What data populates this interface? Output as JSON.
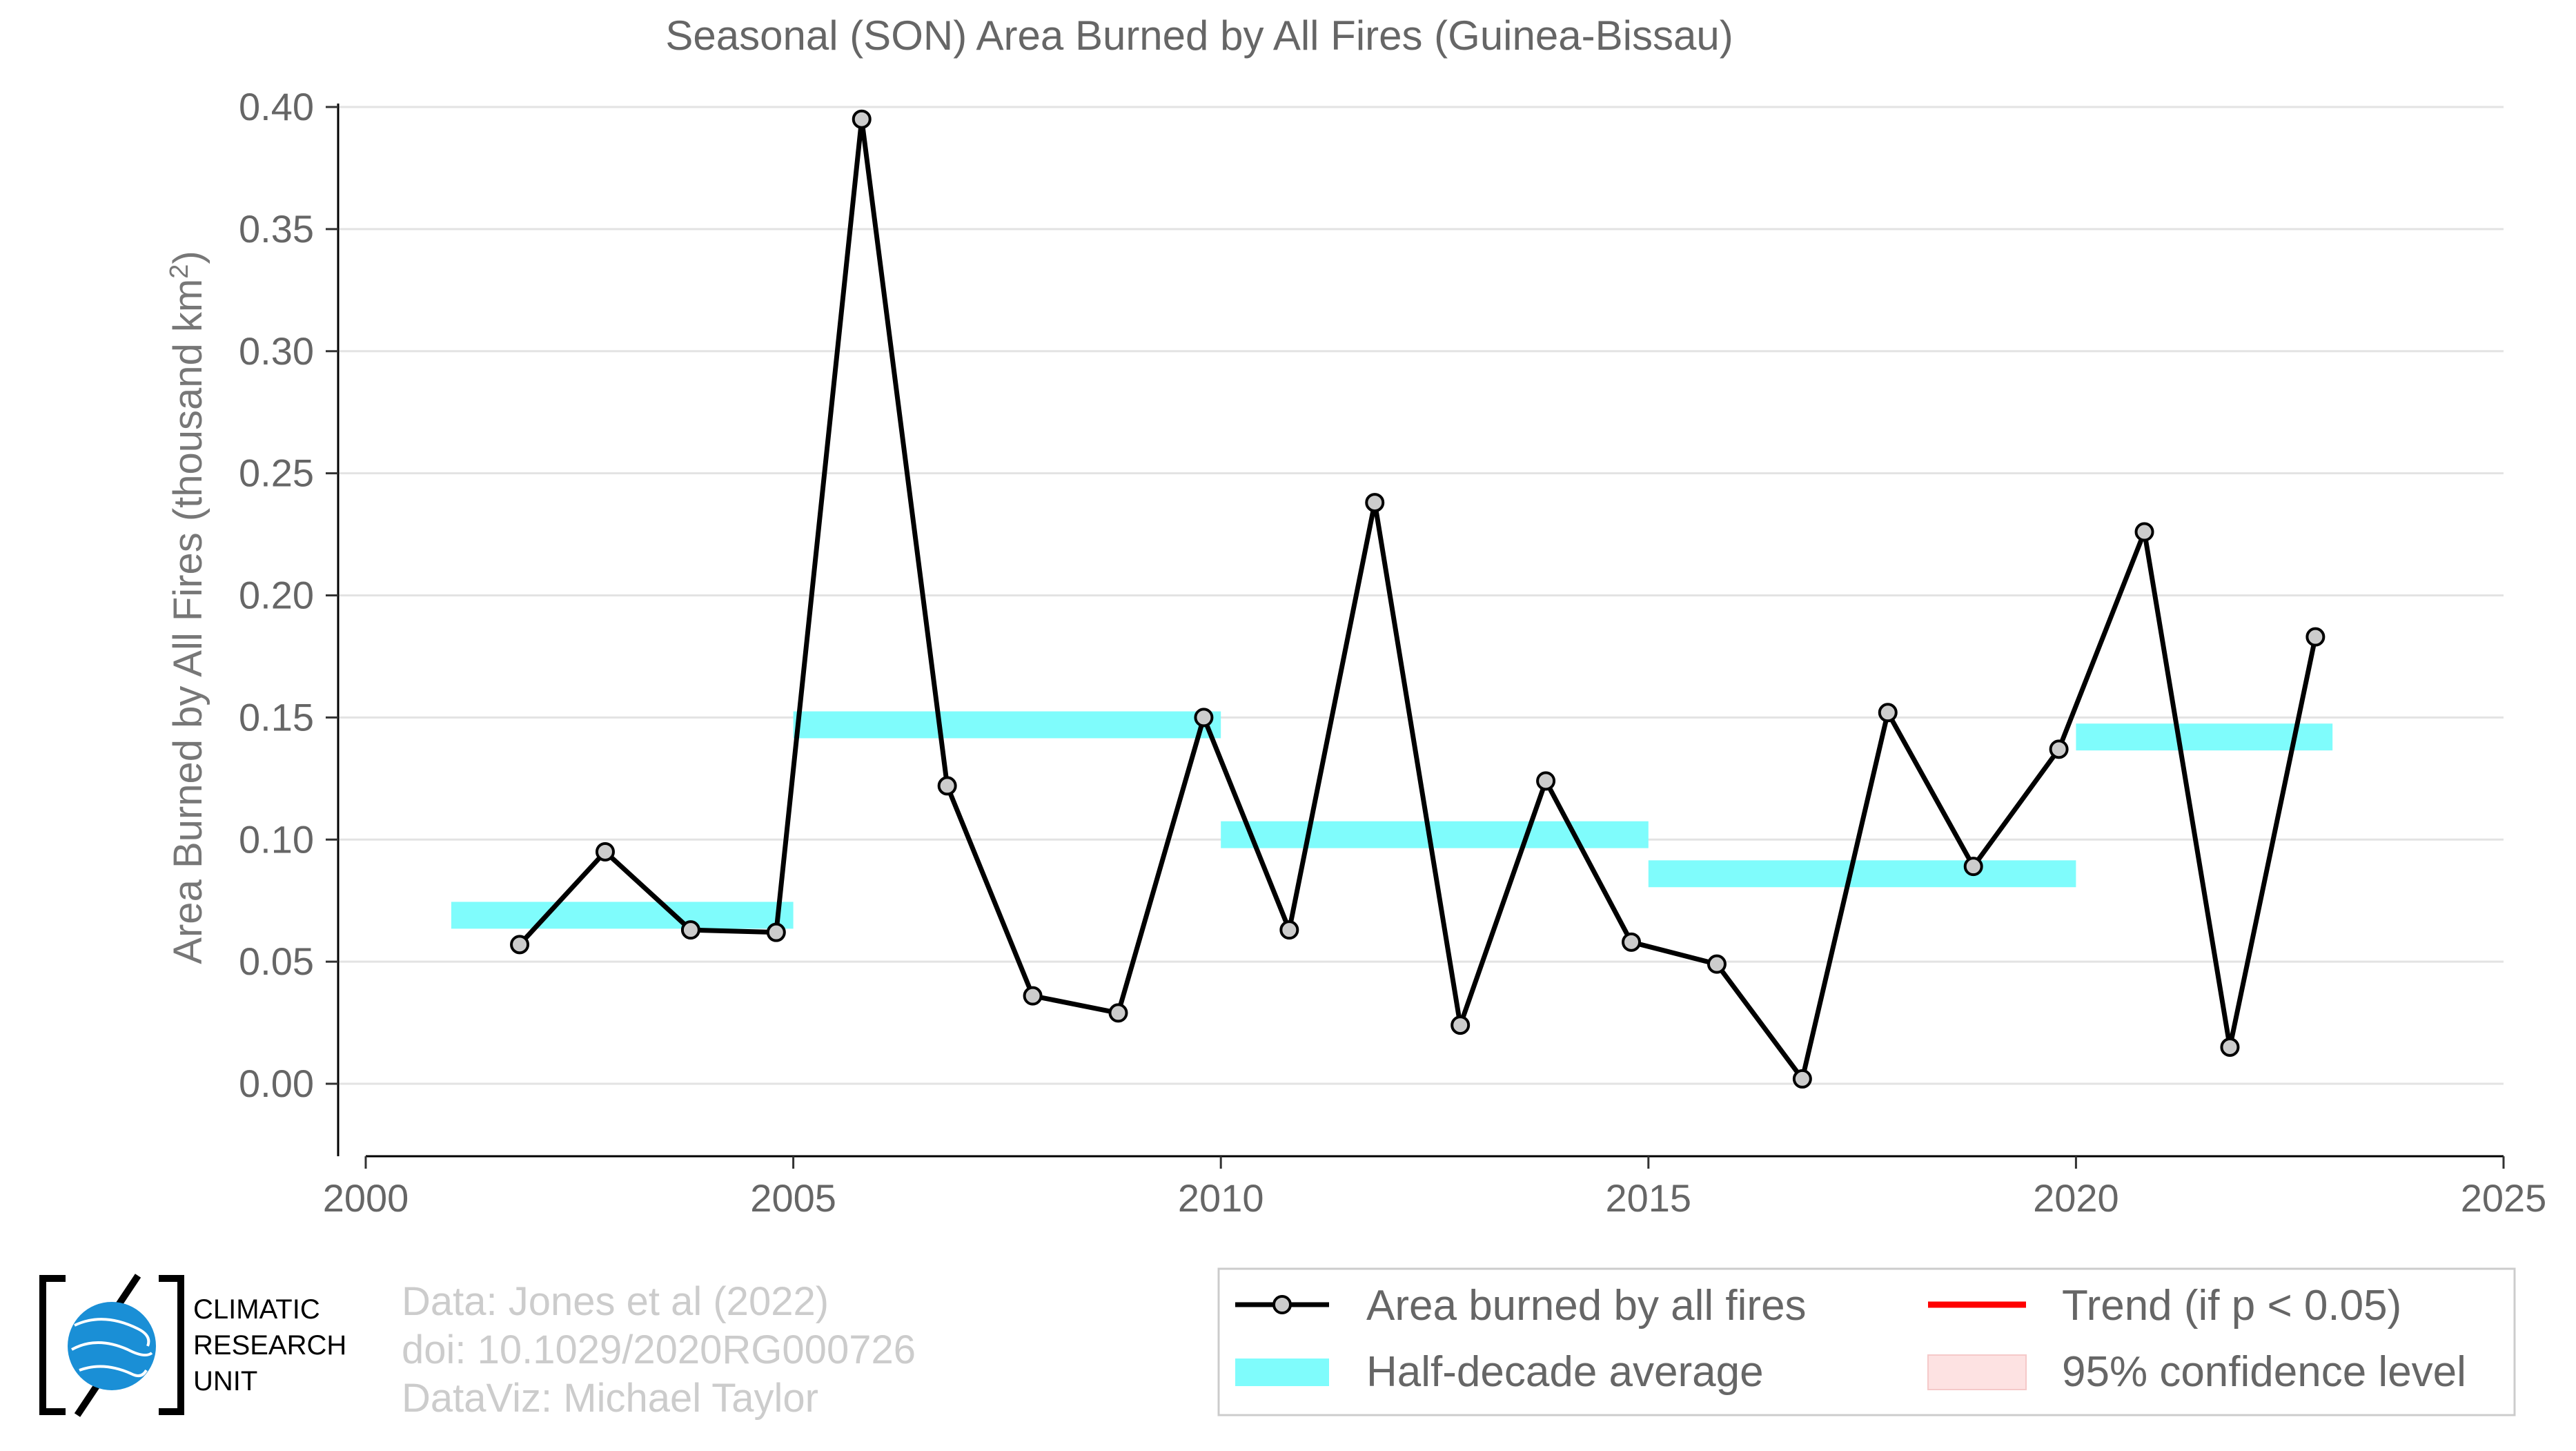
{
  "chart_data": {
    "type": "line",
    "title": "Seasonal (SON) Area Burned by All Fires (Guinea-Bissau)",
    "ylabel": "Area Burned by All Fires (thousand km",
    "ylabel_sup": "2",
    "ylabel_close": ")",
    "xlim": [
      2000,
      2025
    ],
    "ylim": [
      -0.03,
      0.4
    ],
    "x_ticks": [
      2000,
      2005,
      2010,
      2015,
      2020,
      2025
    ],
    "y_ticks": [
      0.0,
      0.05,
      0.1,
      0.15,
      0.2,
      0.25,
      0.3,
      0.35,
      0.4
    ],
    "y_tick_labels": [
      "0.00",
      "0.05",
      "0.10",
      "0.15",
      "0.20",
      "0.25",
      "0.30",
      "0.35",
      "0.40"
    ],
    "grid": true,
    "series": [
      {
        "name": "Area burned by all fires",
        "color": "#000000",
        "marker_fill": "#cccccc",
        "x": [
          2001.8,
          2002.8,
          2003.8,
          2004.8,
          2005.8,
          2006.8,
          2007.8,
          2008.8,
          2009.8,
          2010.8,
          2011.8,
          2012.8,
          2013.8,
          2014.8,
          2015.8,
          2016.8,
          2017.8,
          2018.8,
          2019.8,
          2020.8,
          2021.8,
          2022.8
        ],
        "values": [
          0.057,
          0.095,
          0.063,
          0.062,
          0.395,
          0.122,
          0.036,
          0.029,
          0.15,
          0.063,
          0.238,
          0.024,
          0.124,
          0.058,
          0.049,
          0.002,
          0.152,
          0.089,
          0.137,
          0.226,
          0.015,
          0.183
        ]
      }
    ],
    "half_decade_average": {
      "name": "Half-decade average",
      "color": "#7ffcfc",
      "segments": [
        {
          "x0": 2001,
          "x1": 2005,
          "y": 0.069
        },
        {
          "x0": 2005,
          "x1": 2010,
          "y": 0.147
        },
        {
          "x0": 2010,
          "x1": 2015,
          "y": 0.102
        },
        {
          "x0": 2015,
          "x1": 2020,
          "y": 0.086
        },
        {
          "x0": 2020,
          "x1": 2023,
          "y": 0.142
        }
      ]
    },
    "legend": {
      "placement": "bottom-right",
      "items": [
        {
          "label": "Area burned by all fires",
          "kind": "line-marker",
          "color": "#000000"
        },
        {
          "label": "Trend (if p < 0.05)",
          "kind": "line",
          "color": "#ff0000"
        },
        {
          "label": "Half-decade average",
          "kind": "band",
          "color": "#7ffcfc"
        },
        {
          "label": "95% confidence level",
          "kind": "band",
          "color": "#fde2e2"
        }
      ]
    }
  },
  "credits": {
    "line1": "Data: Jones et al (2022)",
    "line2": "doi: 10.1029/2020RG000726",
    "line3": "DataViz: Michael Taylor"
  },
  "logo": {
    "line1": "CLIMATIC",
    "line2": "RESEARCH",
    "line3": "UNIT",
    "globe_color": "#1a8fd6"
  }
}
